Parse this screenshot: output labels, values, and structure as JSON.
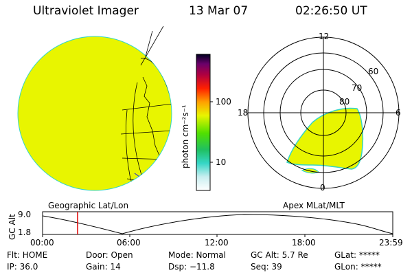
{
  "header": {
    "instrument": "Ultraviolet Imager",
    "date": "13 Mar 07",
    "time": "02:26:50 UT"
  },
  "colorbar": {
    "label": "photon cm⁻²s⁻¹",
    "ticks": [
      "100",
      "10"
    ]
  },
  "polar": {
    "lat_labels": [
      "60",
      "70",
      "80"
    ],
    "mlt_labels": [
      "12",
      "18",
      "6",
      "0"
    ]
  },
  "captions": {
    "left": "Geographic Lat/Lon",
    "right": "Apex MLat/MLT"
  },
  "altitude_plot": {
    "ylabel": "GC Alt",
    "yticks": [
      "9.0",
      "1.8"
    ],
    "xticks": [
      "00:00",
      "06:00",
      "12:00",
      "18:00",
      "23:59"
    ],
    "marker_color": "#e00000"
  },
  "status": {
    "row1": {
      "filter": "Flt: HOME",
      "door": "Door: Open",
      "mode": "Mode: Normal",
      "gc_alt": "GC Alt: 5.7 Re",
      "glat": "GLat: *****"
    },
    "row2": {
      "ip": "IP: 36.0",
      "gain": "Gain: 14",
      "dsp": "Dsp: −11.8",
      "seq": "Seq: 39",
      "glon": "GLon: *****"
    }
  },
  "colors": {
    "aurora": "#e8f500",
    "aurora_edge": "#35d6c6",
    "grid": "#000000"
  }
}
